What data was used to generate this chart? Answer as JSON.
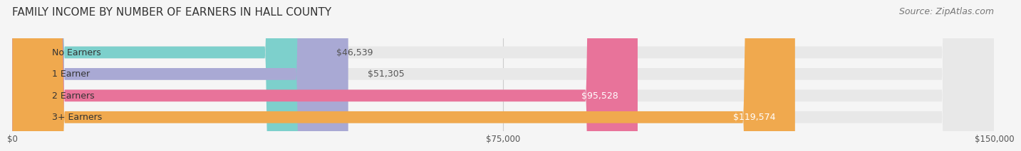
{
  "title": "FAMILY INCOME BY NUMBER OF EARNERS IN HALL COUNTY",
  "source": "Source: ZipAtlas.com",
  "categories": [
    "No Earners",
    "1 Earner",
    "2 Earners",
    "3+ Earners"
  ],
  "values": [
    46539,
    51305,
    95528,
    119574
  ],
  "bar_colors": [
    "#7dd0cc",
    "#a9a9d4",
    "#e8739a",
    "#f0a94e"
  ],
  "bar_bg_color": "#e8e8e8",
  "label_colors": [
    "#555555",
    "#555555",
    "#ffffff",
    "#ffffff"
  ],
  "xlim": [
    0,
    150000
  ],
  "xticks": [
    0,
    75000,
    150000
  ],
  "xticklabels": [
    "$0",
    "$75,000",
    "$150,000"
  ],
  "background_color": "#f5f5f5",
  "title_fontsize": 11,
  "source_fontsize": 9,
  "bar_height": 0.55,
  "bar_label_fontsize": 9,
  "category_fontsize": 9
}
